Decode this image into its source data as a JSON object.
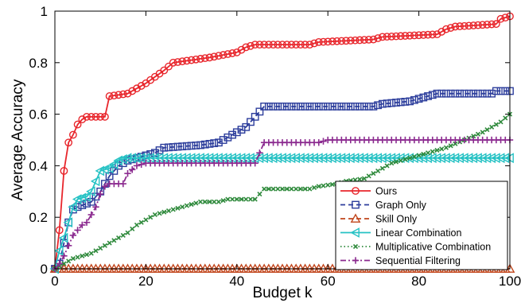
{
  "chart_data": {
    "type": "line",
    "xlabel": "Budget k",
    "ylabel": "Average Accuracy",
    "xlim": [
      0,
      100
    ],
    "ylim": [
      0,
      1
    ],
    "xticks": [
      0,
      20,
      40,
      60,
      80,
      100
    ],
    "yticks": [
      0,
      0.2,
      0.4,
      0.6,
      0.8,
      1
    ],
    "ytick_labels": [
      "0",
      "0.2",
      "0.4",
      "0.6",
      "0.8",
      "1"
    ],
    "grid": false,
    "legend_position": "bottom-right",
    "series": [
      {
        "name": "Ours",
        "color": "#e8262c",
        "marker": "circle",
        "dash": "solid",
        "points": [
          [
            0,
            0
          ],
          [
            1,
            0.15
          ],
          [
            2,
            0.38
          ],
          [
            3,
            0.49
          ],
          [
            4,
            0.52
          ],
          [
            5,
            0.56
          ],
          [
            6,
            0.58
          ],
          [
            7,
            0.59
          ],
          [
            11,
            0.59
          ],
          [
            12,
            0.67
          ],
          [
            16,
            0.68
          ],
          [
            20,
            0.72
          ],
          [
            24,
            0.77
          ],
          [
            26,
            0.8
          ],
          [
            30,
            0.81
          ],
          [
            34,
            0.82
          ],
          [
            40,
            0.84
          ],
          [
            42,
            0.86
          ],
          [
            44,
            0.87
          ],
          [
            56,
            0.87
          ],
          [
            58,
            0.88
          ],
          [
            70,
            0.89
          ],
          [
            72,
            0.9
          ],
          [
            84,
            0.91
          ],
          [
            86,
            0.93
          ],
          [
            88,
            0.94
          ],
          [
            97,
            0.95
          ],
          [
            98,
            0.97
          ],
          [
            100,
            0.98
          ]
        ]
      },
      {
        "name": "Graph Only",
        "color": "#2d3e9c",
        "marker": "square",
        "dash": "dashed",
        "points": [
          [
            0,
            0
          ],
          [
            1,
            0.02
          ],
          [
            2,
            0.1
          ],
          [
            3,
            0.18
          ],
          [
            4,
            0.23
          ],
          [
            5,
            0.24
          ],
          [
            8,
            0.26
          ],
          [
            10,
            0.3
          ],
          [
            12,
            0.36
          ],
          [
            14,
            0.4
          ],
          [
            16,
            0.42
          ],
          [
            18,
            0.43
          ],
          [
            20,
            0.44
          ],
          [
            22,
            0.45
          ],
          [
            24,
            0.47
          ],
          [
            32,
            0.48
          ],
          [
            36,
            0.49
          ],
          [
            38,
            0.51
          ],
          [
            40,
            0.53
          ],
          [
            42,
            0.55
          ],
          [
            44,
            0.59
          ],
          [
            46,
            0.63
          ],
          [
            70,
            0.63
          ],
          [
            72,
            0.64
          ],
          [
            78,
            0.65
          ],
          [
            82,
            0.67
          ],
          [
            84,
            0.68
          ],
          [
            96,
            0.68
          ],
          [
            97,
            0.69
          ],
          [
            100,
            0.69
          ]
        ]
      },
      {
        "name": "Skill Only",
        "color": "#c1451b",
        "marker": "triangle",
        "dash": "dashed",
        "points": [
          [
            0,
            0
          ],
          [
            100,
            0
          ]
        ]
      },
      {
        "name": "Linear Combination",
        "color": "#26c2c4",
        "marker": "triangle-left",
        "dash": "solid",
        "points": [
          [
            0,
            0
          ],
          [
            1,
            0.07
          ],
          [
            2,
            0.12
          ],
          [
            3,
            0.18
          ],
          [
            4,
            0.24
          ],
          [
            5,
            0.27
          ],
          [
            7,
            0.28
          ],
          [
            8,
            0.3
          ],
          [
            10,
            0.38
          ],
          [
            12,
            0.39
          ],
          [
            14,
            0.42
          ],
          [
            16,
            0.43
          ],
          [
            20,
            0.43
          ],
          [
            30,
            0.43
          ],
          [
            40,
            0.43
          ],
          [
            50,
            0.43
          ],
          [
            60,
            0.43
          ],
          [
            70,
            0.43
          ],
          [
            80,
            0.43
          ],
          [
            90,
            0.43
          ],
          [
            100,
            0.43
          ]
        ]
      },
      {
        "name": "Multiplicative Combination",
        "color": "#2f8a3c",
        "marker": "x",
        "dash": "dotted",
        "points": [
          [
            0,
            0
          ],
          [
            2,
            0.02
          ],
          [
            4,
            0.04
          ],
          [
            6,
            0.05
          ],
          [
            8,
            0.06
          ],
          [
            10,
            0.08
          ],
          [
            12,
            0.1
          ],
          [
            14,
            0.12
          ],
          [
            16,
            0.14
          ],
          [
            18,
            0.17
          ],
          [
            20,
            0.19
          ],
          [
            22,
            0.21
          ],
          [
            24,
            0.22
          ],
          [
            26,
            0.23
          ],
          [
            28,
            0.24
          ],
          [
            30,
            0.25
          ],
          [
            32,
            0.26
          ],
          [
            36,
            0.26
          ],
          [
            38,
            0.27
          ],
          [
            44,
            0.27
          ],
          [
            46,
            0.31
          ],
          [
            56,
            0.31
          ],
          [
            58,
            0.32
          ],
          [
            62,
            0.33
          ],
          [
            64,
            0.34
          ],
          [
            68,
            0.35
          ],
          [
            70,
            0.37
          ],
          [
            72,
            0.39
          ],
          [
            74,
            0.41
          ],
          [
            78,
            0.43
          ],
          [
            82,
            0.45
          ],
          [
            86,
            0.47
          ],
          [
            90,
            0.5
          ],
          [
            94,
            0.53
          ],
          [
            96,
            0.55
          ],
          [
            98,
            0.57
          ],
          [
            100,
            0.6
          ]
        ]
      },
      {
        "name": "Sequential Filtering",
        "color": "#8b2a8f",
        "marker": "plus",
        "dash": "dashdot",
        "points": [
          [
            0,
            0
          ],
          [
            1,
            0.02
          ],
          [
            2,
            0.05
          ],
          [
            3,
            0.09
          ],
          [
            4,
            0.13
          ],
          [
            5,
            0.15
          ],
          [
            6,
            0.17
          ],
          [
            7,
            0.18
          ],
          [
            8,
            0.21
          ],
          [
            9,
            0.24
          ],
          [
            10,
            0.29
          ],
          [
            11,
            0.32
          ],
          [
            12,
            0.33
          ],
          [
            15,
            0.33
          ],
          [
            16,
            0.37
          ],
          [
            18,
            0.4
          ],
          [
            20,
            0.41
          ],
          [
            44,
            0.41
          ],
          [
            46,
            0.49
          ],
          [
            58,
            0.49
          ],
          [
            60,
            0.5
          ],
          [
            100,
            0.5
          ]
        ]
      }
    ]
  }
}
